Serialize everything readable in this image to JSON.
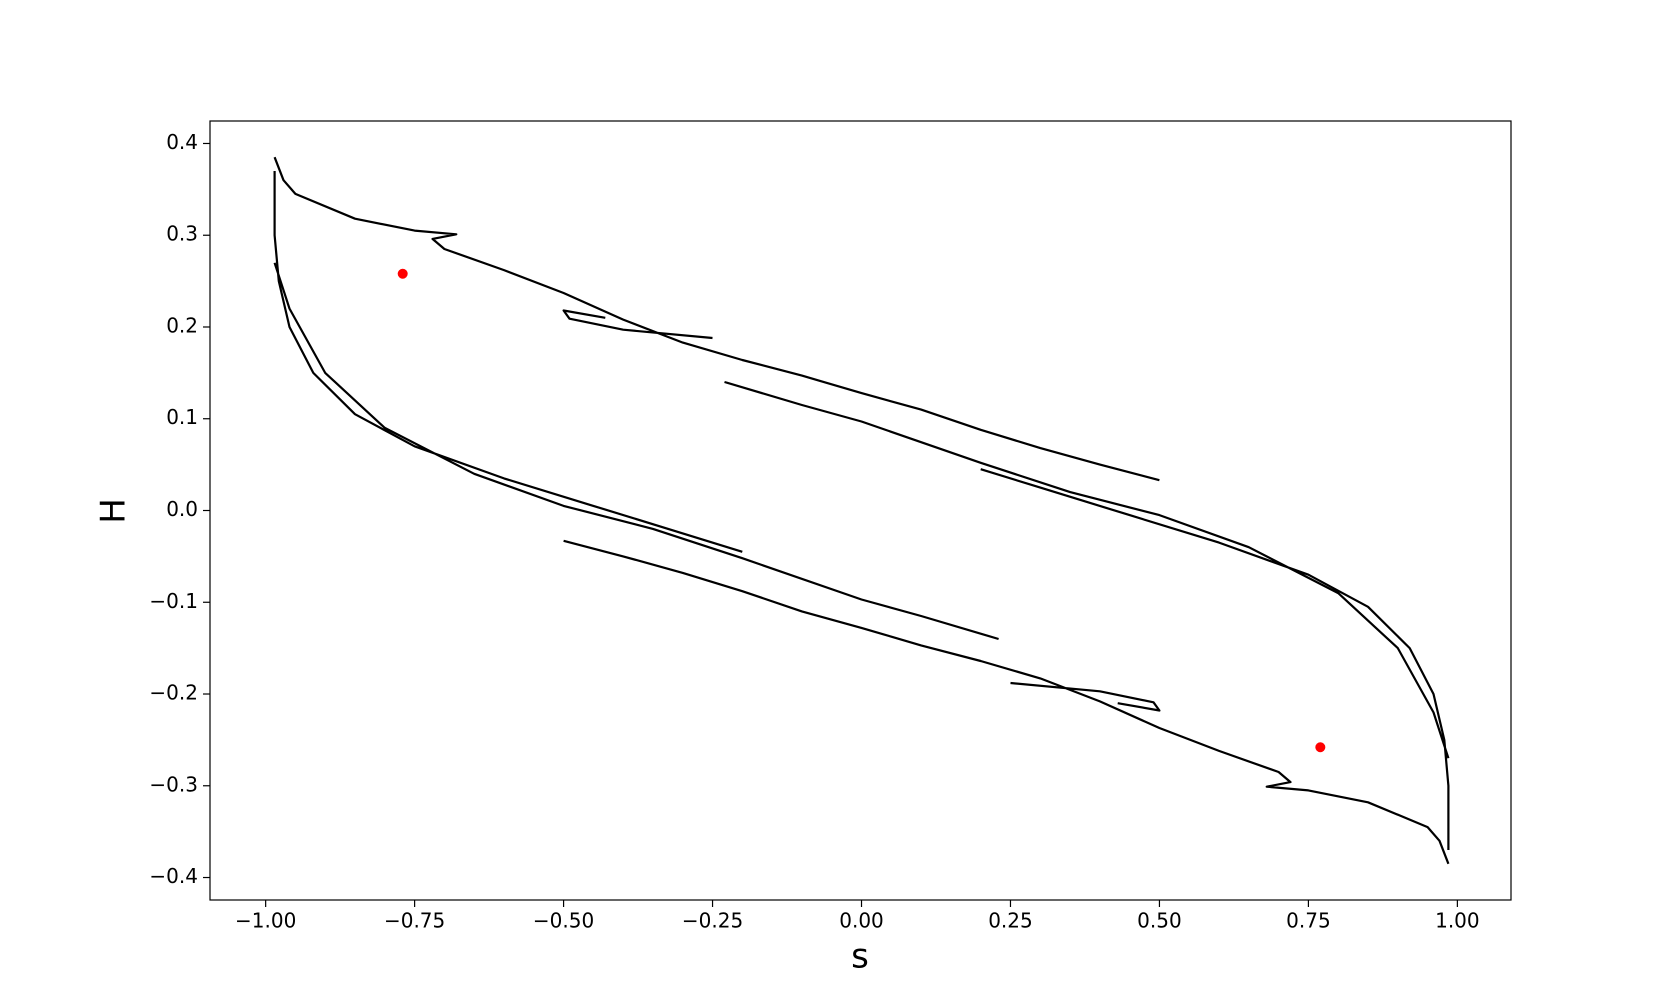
{
  "chart_data": {
    "type": "scatter",
    "xlabel": "s",
    "ylabel": "H",
    "xlim": [
      -1.0934,
      1.09
    ],
    "ylim": [
      -0.4245,
      0.4245
    ],
    "xticks": [
      {
        "value": -1,
        "label": "−1.00"
      },
      {
        "value": -0.75,
        "label": "−0.75"
      },
      {
        "value": -0.5,
        "label": "−0.50"
      },
      {
        "value": -0.25,
        "label": "−0.25"
      },
      {
        "value": 0,
        "label": "0.00"
      },
      {
        "value": 0.25,
        "label": "0.25"
      },
      {
        "value": 0.5,
        "label": "0.50"
      },
      {
        "value": 0.75,
        "label": "0.75"
      },
      {
        "value": 1,
        "label": "1.00"
      }
    ],
    "yticks": [
      {
        "value": -0.4,
        "label": "−0.4"
      },
      {
        "value": -0.3,
        "label": "−0.3"
      },
      {
        "value": -0.2,
        "label": "−0.2"
      },
      {
        "value": -0.1,
        "label": "−0.1"
      },
      {
        "value": 0,
        "label": "0.0"
      },
      0.1,
      0.2,
      0.3,
      0.4
    ],
    "series": [
      {
        "color": "#000000",
        "style": "line",
        "x": [
          -0.985,
          -0.97,
          -0.95,
          -0.85,
          -0.75,
          -0.68,
          -0.72,
          -0.7,
          -0.6,
          -0.5,
          -0.4,
          -0.3,
          -0.2,
          -0.1,
          0,
          0.1,
          0.2,
          0.3,
          0.4,
          0.5,
          null,
          -0.43,
          -0.5,
          -0.49,
          -0.4,
          -0.25,
          null,
          -0.23,
          -0.1,
          0,
          0.2,
          0.35,
          0.5,
          0.65,
          0.8,
          0.9,
          0.96,
          0.985,
          null,
          -0.985,
          -0.985,
          -0.978,
          -0.96,
          -0.92,
          -0.85,
          -0.75,
          -0.6,
          -0.45,
          -0.3,
          -0.2,
          null,
          0.985,
          0.97,
          0.95,
          0.85,
          0.75,
          0.68,
          0.72,
          0.7,
          0.6,
          0.5,
          0.4,
          0.3,
          0.2,
          0.1,
          0,
          -0.1,
          -0.2,
          -0.3,
          -0.4,
          -0.5,
          null,
          0.43,
          0.5,
          0.49,
          0.4,
          0.25,
          null,
          0.23,
          0.1,
          0,
          -0.2,
          -0.35,
          -0.5,
          -0.65,
          -0.8,
          -0.9,
          -0.96,
          -0.985,
          null,
          0.985,
          0.985,
          0.978,
          0.96,
          0.92,
          0.85,
          0.75,
          0.6,
          0.45,
          0.3,
          0.2
        ],
        "y": [
          0.385,
          0.36,
          0.345,
          0.318,
          0.305,
          0.301,
          0.296,
          0.285,
          0.262,
          0.237,
          0.208,
          0.183,
          0.164,
          0.147,
          0.128,
          0.11,
          0.088,
          0.068,
          0.05,
          0.033,
          null,
          0.21,
          0.218,
          0.209,
          0.197,
          0.188,
          null,
          0.14,
          0.115,
          0.097,
          0.052,
          0.02,
          -0.005,
          -0.04,
          -0.09,
          -0.15,
          -0.22,
          -0.27,
          null,
          0.37,
          0.3,
          0.25,
          0.2,
          0.15,
          0.105,
          0.07,
          0.035,
          0.005,
          -0.025,
          -0.045,
          null,
          -0.385,
          -0.36,
          -0.345,
          -0.318,
          -0.305,
          -0.301,
          -0.296,
          -0.285,
          -0.262,
          -0.237,
          -0.208,
          -0.183,
          -0.164,
          -0.147,
          -0.128,
          -0.11,
          -0.088,
          -0.068,
          -0.05,
          -0.033,
          null,
          -0.21,
          -0.218,
          -0.209,
          -0.197,
          -0.188,
          null,
          -0.14,
          -0.115,
          -0.097,
          -0.052,
          -0.02,
          0.005,
          0.04,
          0.09,
          0.15,
          0.22,
          0.27,
          null,
          -0.37,
          -0.3,
          -0.25,
          -0.2,
          -0.15,
          -0.105,
          -0.07,
          -0.035,
          -0.005,
          0.025,
          0.045
        ]
      },
      {
        "color": "#ff0000",
        "style": "dot",
        "x": [
          -0.77,
          0.77
        ],
        "y": [
          0.258,
          -0.258
        ]
      }
    ]
  }
}
